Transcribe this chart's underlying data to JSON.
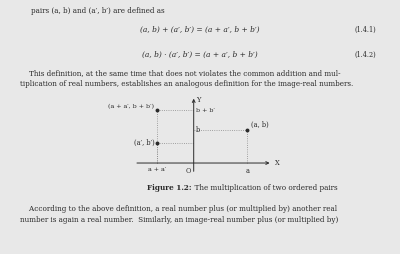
{
  "bg_color": "#e8e8e8",
  "text_color": "#2a2a2a",
  "line1": "pairs (a, b) and (a′, b′) are defined as",
  "eq1_text": "(a, b) + (a′, b′) = (a + a′, b + b′)",
  "eq1_label": "(1.4.1)",
  "eq2_text": "(a, b) · (a′, b′) = (a + a′, b + b′)",
  "eq2_label": "(1.4.2)",
  "para": "    This definition, at the same time that does not violates the common addition and mul-\ntiplication of real numbers, establishes an analogous definition for the image-real numbers.",
  "fig_bold": "Figure 1.2:",
  "fig_normal": "  The multiplication of two ordered pairs",
  "bottom": "    According to the above definition, a real number plus (or multiplied by) another real\nnumber is again a real number.  Similarly, an image-real number plus (or multiplied by)",
  "point_ab": [
    0.85,
    0.52
  ],
  "point_apbp": [
    -0.58,
    0.32
  ],
  "point_sum": [
    -0.58,
    0.84
  ],
  "dot_color": "#2a2a2a",
  "line_color": "#2a2a2a",
  "dash_color": "#888888",
  "fs_text": 5.2,
  "fs_eq": 5.4,
  "fs_label": 4.8
}
